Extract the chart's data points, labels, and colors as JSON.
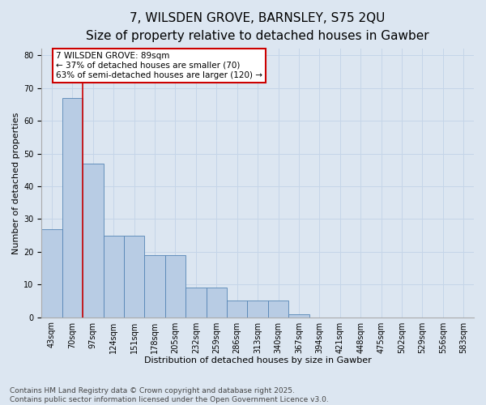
{
  "title1": "7, WILSDEN GROVE, BARNSLEY, S75 2QU",
  "title2": "Size of property relative to detached houses in Gawber",
  "xlabel": "Distribution of detached houses by size in Gawber",
  "ylabel": "Number of detached properties",
  "categories": [
    "43sqm",
    "70sqm",
    "97sqm",
    "124sqm",
    "151sqm",
    "178sqm",
    "205sqm",
    "232sqm",
    "259sqm",
    "286sqm",
    "313sqm",
    "340sqm",
    "367sqm",
    "394sqm",
    "421sqm",
    "448sqm",
    "475sqm",
    "502sqm",
    "529sqm",
    "556sqm",
    "583sqm"
  ],
  "values": [
    27,
    67,
    47,
    25,
    25,
    19,
    19,
    9,
    9,
    5,
    5,
    5,
    1,
    0,
    0,
    0,
    0,
    0,
    0,
    0,
    0
  ],
  "bar_color": "#b8cce4",
  "bar_edge_color": "#5585b5",
  "grid_color": "#c5d5e8",
  "bg_color": "#dce6f1",
  "vline_x_index": 2,
  "vline_color": "#cc0000",
  "annotation_text": "7 WILSDEN GROVE: 89sqm\n← 37% of detached houses are smaller (70)\n63% of semi-detached houses are larger (120) →",
  "annotation_box_color": "white",
  "annotation_border_color": "#cc0000",
  "ylim": [
    0,
    82
  ],
  "yticks": [
    0,
    10,
    20,
    30,
    40,
    50,
    60,
    70,
    80
  ],
  "footnote": "Contains HM Land Registry data © Crown copyright and database right 2025.\nContains public sector information licensed under the Open Government Licence v3.0.",
  "title_fontsize": 11,
  "subtitle_fontsize": 9,
  "axis_label_fontsize": 8,
  "tick_fontsize": 7,
  "annot_fontsize": 7.5,
  "footnote_fontsize": 6.5
}
